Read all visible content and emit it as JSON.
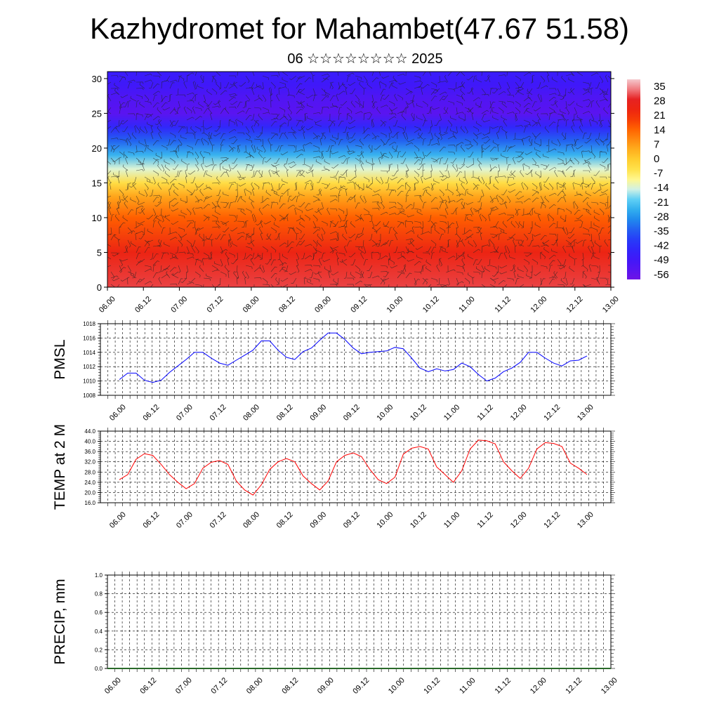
{
  "title": "Kazhydromet for Mahambet(47.67 51.58)",
  "subtitle": "06 ☆☆☆☆☆☆☆☆ 2025",
  "time_labels": [
    "06.00",
    "06.12",
    "07.00",
    "07.12",
    "08.00",
    "08.12",
    "09.00",
    "09.12",
    "10.00",
    "10.12",
    "11.00",
    "11.12",
    "12.00",
    "12.12",
    "13.00"
  ],
  "chart_data": [
    {
      "type": "heatmap",
      "title": "",
      "xlabel": "",
      "ylabel": "",
      "ylim": [
        0,
        31
      ],
      "y_ticks": [
        0,
        5,
        10,
        15,
        20,
        25,
        30
      ],
      "colorbar": {
        "labels": [
          "35",
          "28",
          "21",
          "14",
          "7",
          "0",
          "-7",
          "-14",
          "-21",
          "-28",
          "-35",
          "-42",
          "-49",
          "-56"
        ],
        "range": [
          -60,
          38
        ]
      },
      "temperature_profile": [
        {
          "y": 0,
          "v": 30
        },
        {
          "y": 5,
          "v": 24
        },
        {
          "y": 10,
          "v": 14
        },
        {
          "y": 13,
          "v": 5
        },
        {
          "y": 15,
          "v": -5
        },
        {
          "y": 17,
          "v": -15
        },
        {
          "y": 19,
          "v": -25
        },
        {
          "y": 21,
          "v": -35
        },
        {
          "y": 23,
          "v": -45
        },
        {
          "y": 25,
          "v": -56
        },
        {
          "y": 27,
          "v": -54
        },
        {
          "y": 29,
          "v": -50
        },
        {
          "y": 31,
          "v": -48
        }
      ],
      "overlay": "wind barbs",
      "colors": {
        "warm": "#e8140f",
        "cold": "#4a10f0"
      }
    },
    {
      "type": "line",
      "title": "",
      "ylabel": "PMSL",
      "xlabel": "",
      "ylim": [
        1008,
        1018
      ],
      "y_ticks": [
        "1008",
        "1010",
        "1012",
        "1014",
        "1016",
        "1018"
      ],
      "series": [
        {
          "name": "",
          "color": "#0000ff",
          "values": [
            1010.2,
            1011.1,
            1011.1,
            1010.1,
            1009.8,
            1010.1,
            1011.2,
            1012.1,
            1013.0,
            1014.0,
            1014.0,
            1013.2,
            1012.5,
            1012.2,
            1012.9,
            1013.6,
            1014.3,
            1015.6,
            1015.6,
            1014.3,
            1013.3,
            1013.0,
            1014.1,
            1014.6,
            1015.7,
            1016.7,
            1016.7,
            1015.8,
            1014.6,
            1013.8,
            1014.0,
            1014.1,
            1014.2,
            1014.7,
            1014.5,
            1013.2,
            1011.8,
            1011.3,
            1011.7,
            1011.4,
            1011.6,
            1012.5,
            1012.0,
            1010.9,
            1010.0,
            1010.4,
            1011.3,
            1011.8,
            1012.6,
            1014.0,
            1014.0,
            1013.2,
            1012.5,
            1012.1,
            1012.8,
            1012.9,
            1013.5
          ]
        }
      ]
    },
    {
      "type": "line",
      "title": "",
      "ylabel": "TEMP at 2 M",
      "xlabel": "",
      "ylim": [
        16,
        44
      ],
      "y_ticks": [
        "16.0",
        "20.0",
        "24.0",
        "28.0",
        "32.0",
        "36.0",
        "40.0",
        "44.0"
      ],
      "series": [
        {
          "name": "",
          "color": "#ff0000",
          "values": [
            25.0,
            27.0,
            33.0,
            35.2,
            34.5,
            31.0,
            27.0,
            24.0,
            21.5,
            23.5,
            29.5,
            31.8,
            32.5,
            31.0,
            24.5,
            21.0,
            19.0,
            23.0,
            29.0,
            32.0,
            33.3,
            32.0,
            26.5,
            23.5,
            21.0,
            24.5,
            32.0,
            34.5,
            35.5,
            34.0,
            29.0,
            25.0,
            23.5,
            26.0,
            35.0,
            37.3,
            38.0,
            37.0,
            30.0,
            27.0,
            24.0,
            28.5,
            37.0,
            40.5,
            40.2,
            39.0,
            32.0,
            28.5,
            25.5,
            29.5,
            37.0,
            39.5,
            39.2,
            38.0,
            31.5,
            29.5,
            27.0
          ]
        }
      ]
    },
    {
      "type": "line",
      "title": "",
      "ylabel": "PRECIP, mm",
      "xlabel": "",
      "ylim": [
        0,
        1
      ],
      "y_ticks": [
        "0.0",
        "0.2",
        "0.4",
        "0.6",
        "0.8",
        "1.0"
      ],
      "series": [
        {
          "name": "",
          "color": "#2a6a2a",
          "values": []
        }
      ]
    }
  ]
}
